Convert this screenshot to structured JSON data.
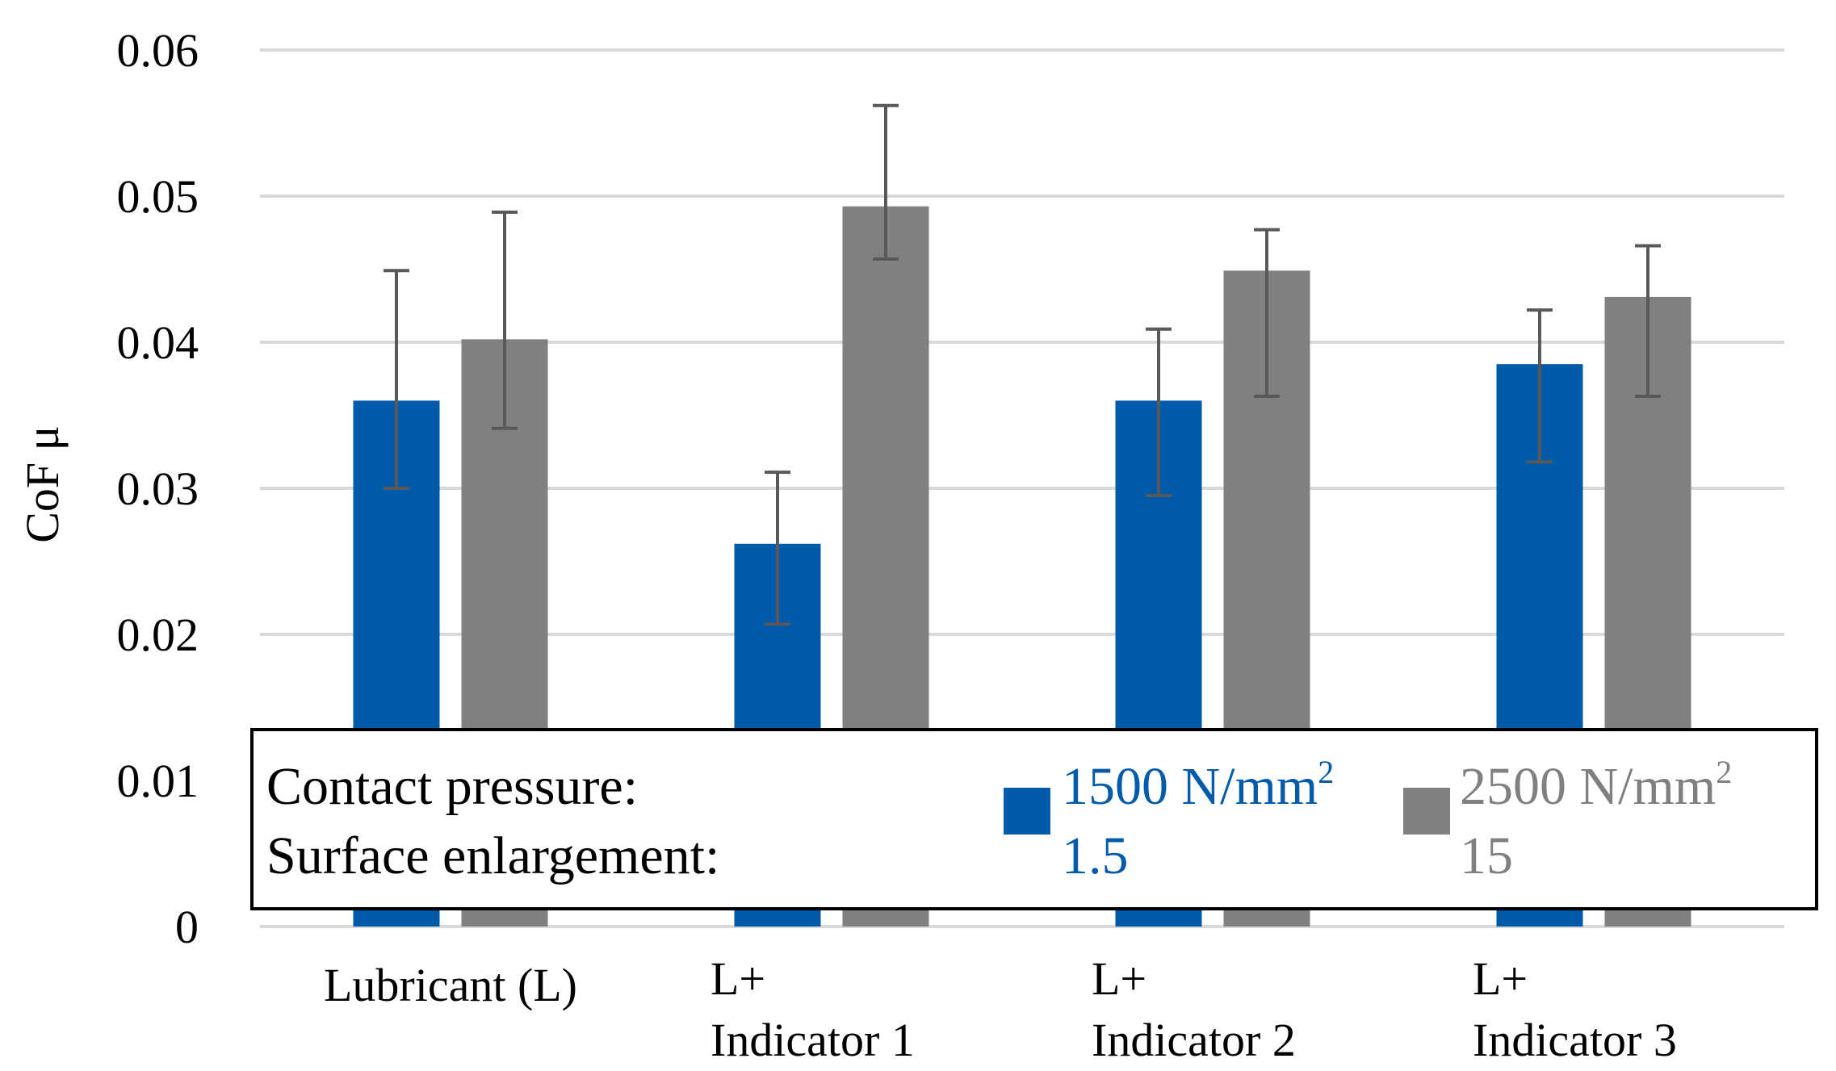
{
  "chart_data": {
    "type": "bar",
    "title": "",
    "xlabel": "",
    "ylabel": "CoF μ",
    "ylim": [
      0,
      0.06
    ],
    "yticks": [
      "0",
      "0.01",
      "0.02",
      "0.03",
      "0.04",
      "0.05",
      "0.06"
    ],
    "grid": true,
    "categories": [
      [
        "Lubricant (L)"
      ],
      [
        "L+",
        "Indicator 1"
      ],
      [
        "L+",
        "Indicator 2"
      ],
      [
        "L+",
        "Indicator 3"
      ]
    ],
    "series": [
      {
        "name": "1500 N/mm² / 1.5",
        "color": "#005BAA",
        "values": [
          0.036,
          0.0262,
          0.036,
          0.0385
        ],
        "error_low": [
          0.03,
          0.0207,
          0.0295,
          0.0318
        ],
        "error_high": [
          0.0449,
          0.0311,
          0.0409,
          0.0422
        ]
      },
      {
        "name": "2500 N/mm² / 15",
        "color": "#808080",
        "values": [
          0.0402,
          0.0493,
          0.0449,
          0.0431
        ],
        "error_low": [
          0.0341,
          0.0457,
          0.0363,
          0.0363
        ],
        "error_high": [
          0.0489,
          0.0562,
          0.0477,
          0.0466
        ]
      }
    ],
    "legend": {
      "placement": "bottom",
      "row_labels": [
        "Contact pressure:",
        "Surface enlargement:"
      ],
      "entries": [
        {
          "line1": "1500 N/mm",
          "sup": "2",
          "line2": "1.5",
          "color": "#005BAA"
        },
        {
          "line1": "2500 N/mm",
          "sup": "2",
          "line2": "15",
          "color": "#808080"
        }
      ]
    }
  }
}
